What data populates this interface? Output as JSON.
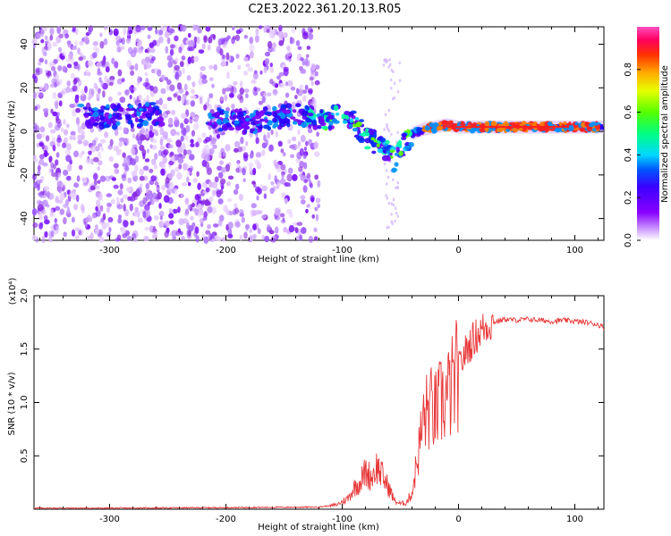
{
  "title": "C2E3.2022.361.20.13.R05",
  "colorbar": {
    "label": "Normalized spectral amplitude",
    "ticks": [
      "0.0",
      "0.2",
      "0.4",
      "0.6",
      "0.8"
    ],
    "tick_values": [
      0.0,
      0.2,
      0.4,
      0.6,
      0.8
    ],
    "range": [
      0,
      1
    ]
  },
  "chart_data": [
    {
      "type": "heatmap",
      "title": "",
      "xlabel": "Height of straight line (km)",
      "ylabel": "Frequency (Hz)",
      "xlim": [
        -365,
        125
      ],
      "ylim": [
        -50,
        48
      ],
      "xticks": [
        -300,
        -200,
        -100,
        0,
        100
      ],
      "xtick_labels": [
        "-300",
        "-200",
        "-100",
        "0",
        "100"
      ],
      "yticks": [
        -40,
        -20,
        0,
        20,
        40
      ],
      "ytick_labels": [
        "-40",
        "-20",
        "0",
        "20",
        "40"
      ],
      "ridge": {
        "x": [
          -325,
          -300,
          -280,
          -260,
          -220,
          -200,
          -180,
          -160,
          -140,
          -120,
          -100,
          -90,
          -80,
          -70,
          -60,
          -55,
          -50,
          -40,
          -30,
          -20,
          -10,
          0,
          20,
          40,
          60,
          80,
          100,
          120
        ],
        "y": [
          7,
          7,
          7,
          8,
          6,
          5,
          4,
          6,
          8,
          6,
          7,
          4,
          -2,
          -6,
          -8,
          -14,
          -8,
          -1,
          1,
          2,
          3,
          2,
          2,
          2,
          2,
          2,
          2,
          2
        ]
      },
      "noise_region": {
        "x_start": -365,
        "x_end": -120
      }
    },
    {
      "type": "line",
      "title": "",
      "xlabel": "Height of straight line (km)",
      "ylabel": "SNR (10 * v/v)",
      "multiplier": "(x10⁴)",
      "xlim": [
        -365,
        125
      ],
      "ylim": [
        0,
        2.0
      ],
      "xticks": [
        -300,
        -200,
        -100,
        0,
        100
      ],
      "xtick_labels": [
        "-300",
        "-200",
        "-100",
        "0",
        "100"
      ],
      "yticks": [
        0.5,
        1.0,
        1.5,
        2.0
      ],
      "ytick_labels": [
        "0.5",
        "1.0",
        "1.5",
        "2.0"
      ],
      "series": [
        {
          "color": "#e8393a",
          "x": [
            -365,
            -300,
            -200,
            -120,
            -105,
            -95,
            -90,
            -85,
            -80,
            -75,
            -70,
            -65,
            -60,
            -55,
            -50,
            -45,
            -40,
            -35,
            -30,
            -25,
            -20,
            -15,
            -10,
            -5,
            0,
            5,
            10,
            15,
            20,
            25,
            30,
            40,
            50,
            60,
            70,
            80,
            90,
            100,
            110,
            120,
            125
          ],
          "y": [
            0.01,
            0.01,
            0.015,
            0.02,
            0.04,
            0.1,
            0.2,
            0.25,
            0.35,
            0.3,
            0.4,
            0.3,
            0.2,
            0.08,
            0.05,
            0.06,
            0.15,
            0.5,
            0.85,
            0.95,
            0.9,
            1.0,
            1.05,
            1.15,
            1.3,
            1.45,
            1.55,
            1.62,
            1.68,
            1.72,
            1.75,
            1.78,
            1.77,
            1.78,
            1.77,
            1.76,
            1.77,
            1.76,
            1.75,
            1.73,
            1.7
          ]
        }
      ]
    }
  ]
}
